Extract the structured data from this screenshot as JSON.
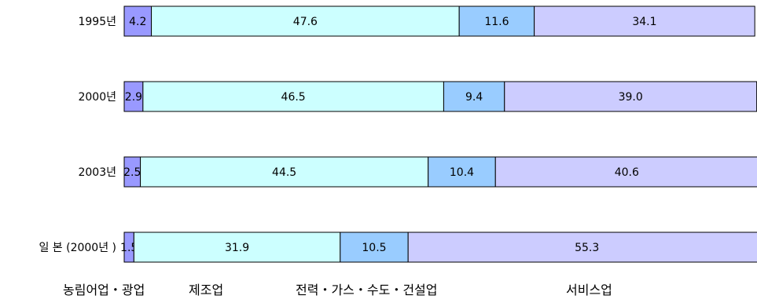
{
  "chart_data": {
    "type": "bar",
    "orientation": "horizontal",
    "stacked": true,
    "categories": [
      "1995년",
      "2000년",
      "2003년",
      "일 본 (2000년 )"
    ],
    "series": [
      {
        "name": "농림어업・광업",
        "color": "#9999ff",
        "values": [
          4.2,
          2.9,
          2.5,
          1.5
        ]
      },
      {
        "name": "제조업",
        "color": "#ccffff",
        "values": [
          47.6,
          46.5,
          44.5,
          31.9
        ]
      },
      {
        "name": "전력・가스・수도・건설업",
        "color": "#99ccff",
        "values": [
          11.6,
          9.4,
          10.4,
          10.5
        ]
      },
      {
        "name": "서비스업",
        "color": "#ccccff",
        "values": [
          34.1,
          39.0,
          40.6,
          55.3
        ]
      }
    ],
    "value_labels": [
      [
        "4.2",
        "47.6",
        "11.6",
        "34.1"
      ],
      [
        "2.9",
        "46.5",
        "9.4",
        "39.0"
      ],
      [
        "2.5",
        "44.5",
        "10.4",
        "40.6"
      ],
      [
        "1.5",
        "31.9",
        "10.5",
        "55.3"
      ]
    ],
    "xlim": [
      0,
      97.6
    ],
    "grid": false,
    "legend_position": "bottom"
  }
}
